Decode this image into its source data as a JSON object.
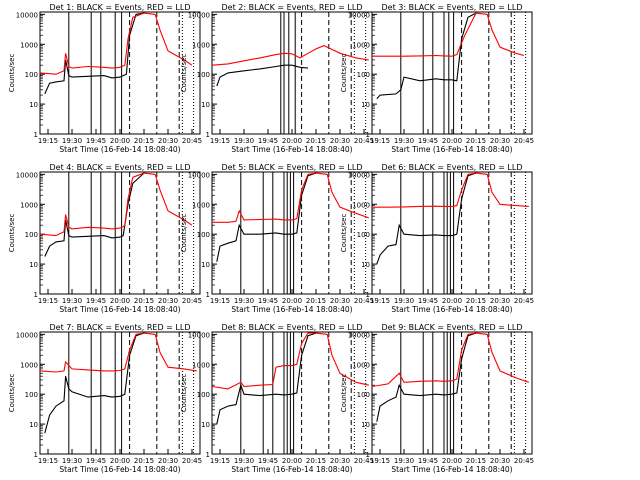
{
  "figure": {
    "start_time_label": "Start Time (16-Feb-14 18:08:40)",
    "ylabel": "Counts/sec",
    "x_tick_labels": [
      "19:15",
      "19:30",
      "19:45",
      "20:00",
      "20:15",
      "20:30",
      "20:45"
    ],
    "y_tick_labels": [
      "1",
      "10",
      "100",
      "1000",
      "10000"
    ]
  },
  "colors": {
    "events": "#000000",
    "lld": "#ff0000",
    "axes": "#000000"
  },
  "chart_data": [
    {
      "type": "line",
      "title": "Det 1: BLACK = Events, RED = LLD",
      "xlabel": "Start Time (16-Feb-14 18:08:40)",
      "ylabel": "Counts/sec",
      "xlim": [
        "19:10",
        "20:50"
      ],
      "ylim": [
        1,
        12000
      ],
      "yscale": "log",
      "series": [
        {
          "name": "Events",
          "color": "#000000",
          "x": [
            "19:13",
            "19:16",
            "19:20",
            "19:25",
            "19:26",
            "19:28",
            "19:30",
            "19:40",
            "19:50",
            "19:55",
            "20:00",
            "20:02",
            "20:04",
            "20:06",
            "20:10",
            "20:15"
          ],
          "values": [
            22,
            50,
            55,
            60,
            300,
            90,
            80,
            85,
            90,
            75,
            80,
            90,
            100,
            2000,
            10000,
            11000
          ]
        },
        {
          "name": "LLD",
          "color": "#ff0000",
          "x": [
            "19:10",
            "19:20",
            "19:25",
            "19:26",
            "19:28",
            "19:30",
            "19:40",
            "19:50",
            "19:55",
            "20:00",
            "20:03",
            "20:05",
            "20:08",
            "20:15",
            "20:22",
            "20:25",
            "20:30",
            "20:40",
            "20:45"
          ],
          "values": [
            110,
            100,
            130,
            500,
            180,
            160,
            180,
            170,
            160,
            170,
            200,
            1500,
            8000,
            11000,
            10000,
            3000,
            600,
            300,
            200
          ]
        }
      ],
      "vlines_solid": [
        "19:28",
        "19:42",
        "19:48",
        "19:57",
        "20:01"
      ],
      "vlines_dashed": [
        "20:06",
        "20:23",
        "20:37"
      ],
      "vlines_dotted": [
        "20:39",
        "20:46"
      ]
    },
    {
      "type": "line",
      "title": "Det 2: BLACK = Events, RED = LLD",
      "xlabel": "Start Time (16-Feb-14 18:08:40)",
      "ylabel": "Counts/sec",
      "xlim": [
        "19:10",
        "20:50"
      ],
      "ylim": [
        1,
        12000
      ],
      "yscale": "log",
      "series": [
        {
          "name": "Events",
          "color": "#000000",
          "x": [
            "19:13",
            "19:15",
            "19:20",
            "19:30",
            "19:40",
            "19:50",
            "19:55",
            "20:00",
            "20:05",
            "20:10"
          ],
          "values": [
            40,
            80,
            110,
            130,
            150,
            180,
            200,
            200,
            170,
            160
          ]
        },
        {
          "name": "LLD",
          "color": "#ff0000",
          "x": [
            "19:10",
            "19:20",
            "19:30",
            "19:40",
            "19:50",
            "19:55",
            "20:00",
            "20:05",
            "20:10",
            "20:15",
            "20:20",
            "20:30",
            "20:40",
            "20:48"
          ],
          "values": [
            200,
            220,
            280,
            350,
            450,
            500,
            480,
            350,
            500,
            700,
            900,
            500,
            350,
            300
          ]
        }
      ],
      "vlines_solid": [
        "19:53",
        "19:55",
        "19:58",
        "20:02"
      ],
      "vlines_dashed": [
        "20:06",
        "20:23",
        "20:37"
      ],
      "vlines_dotted": [
        "20:39",
        "20:46"
      ]
    },
    {
      "type": "line",
      "title": "Det 3: BLACK = Events, RED = LLD",
      "xlabel": "Start Time (16-Feb-14 18:08:40)",
      "ylabel": "Counts/sec",
      "xlim": [
        "19:10",
        "20:50"
      ],
      "ylim": [
        1,
        12000
      ],
      "yscale": "log",
      "series": [
        {
          "name": "Events",
          "color": "#000000",
          "x": [
            "19:13",
            "19:15",
            "19:25",
            "19:28",
            "19:30",
            "19:40",
            "19:50",
            "19:55",
            "20:00",
            "20:03",
            "20:06",
            "20:10",
            "20:15"
          ],
          "values": [
            15,
            20,
            22,
            30,
            80,
            60,
            70,
            65,
            65,
            60,
            1500,
            8000,
            11000
          ]
        },
        {
          "name": "LLD",
          "color": "#ff0000",
          "x": [
            "19:10",
            "19:20",
            "19:30",
            "19:40",
            "19:50",
            "19:55",
            "20:00",
            "20:03",
            "20:08",
            "20:15",
            "20:22",
            "20:25",
            "20:30",
            "20:40",
            "20:45"
          ],
          "values": [
            400,
            400,
            400,
            410,
            420,
            410,
            400,
            450,
            2000,
            11000,
            10000,
            3000,
            800,
            500,
            420
          ]
        }
      ],
      "vlines_solid": [
        "19:28",
        "19:42",
        "19:48",
        "19:55",
        "19:58",
        "20:01"
      ],
      "vlines_dashed": [
        "20:06",
        "20:23",
        "20:37"
      ],
      "vlines_dotted": [
        "20:39",
        "20:46"
      ]
    },
    {
      "type": "line",
      "title": "Det 4: BLACK = Events, RED = LLD",
      "xlabel": "Start Time (16-Feb-14 18:08:40)",
      "ylabel": "Counts/sec",
      "xlim": [
        "19:10",
        "20:50"
      ],
      "ylim": [
        1,
        12000
      ],
      "yscale": "log",
      "series": [
        {
          "name": "Events",
          "color": "#000000",
          "x": [
            "19:13",
            "19:16",
            "19:20",
            "19:25",
            "19:26",
            "19:28",
            "19:30",
            "19:40",
            "19:50",
            "19:55",
            "20:00",
            "20:02",
            "20:05",
            "20:08",
            "20:15"
          ],
          "values": [
            18,
            40,
            55,
            60,
            300,
            90,
            80,
            85,
            90,
            75,
            80,
            90,
            1000,
            5000,
            11000
          ]
        },
        {
          "name": "LLD",
          "color": "#ff0000",
          "x": [
            "19:10",
            "19:20",
            "19:25",
            "19:26",
            "19:28",
            "19:30",
            "19:40",
            "19:50",
            "19:55",
            "20:00",
            "20:03",
            "20:05",
            "20:08",
            "20:15",
            "20:22",
            "20:25",
            "20:30",
            "20:40",
            "20:45"
          ],
          "values": [
            100,
            90,
            120,
            450,
            170,
            150,
            170,
            160,
            150,
            160,
            190,
            1500,
            8000,
            11000,
            10000,
            3000,
            600,
            300,
            200
          ]
        }
      ],
      "vlines_solid": [
        "19:28",
        "19:42",
        "19:48",
        "19:57",
        "20:01"
      ],
      "vlines_dashed": [
        "20:06",
        "20:23",
        "20:37"
      ],
      "vlines_dotted": [
        "20:39",
        "20:46"
      ]
    },
    {
      "type": "line",
      "title": "Det 5: BLACK = Events, RED = LLD",
      "xlabel": "Start Time (16-Feb-14 18:08:40)",
      "ylabel": "Counts/sec",
      "xlim": [
        "19:10",
        "20:50"
      ],
      "ylim": [
        1,
        12000
      ],
      "yscale": "log",
      "series": [
        {
          "name": "Events",
          "color": "#000000",
          "x": [
            "19:13",
            "19:15",
            "19:20",
            "19:25",
            "19:27",
            "19:30",
            "19:40",
            "19:50",
            "19:55",
            "20:00",
            "20:03",
            "20:06",
            "20:10",
            "20:15"
          ],
          "values": [
            12,
            40,
            50,
            60,
            200,
            100,
            100,
            110,
            100,
            100,
            110,
            2000,
            9000,
            11000
          ]
        },
        {
          "name": "LLD",
          "color": "#ff0000",
          "x": [
            "19:10",
            "19:20",
            "19:25",
            "19:27",
            "19:30",
            "19:40",
            "19:50",
            "19:55",
            "20:00",
            "20:03",
            "20:06",
            "20:10",
            "20:15",
            "20:22",
            "20:25",
            "20:30",
            "20:40",
            "20:48"
          ],
          "values": [
            250,
            250,
            270,
            600,
            300,
            310,
            320,
            300,
            300,
            330,
            3000,
            10000,
            11000,
            10000,
            2500,
            800,
            500,
            350
          ]
        }
      ],
      "vlines_solid": [
        "19:28",
        "19:42",
        "19:48",
        "19:55",
        "19:57",
        "19:59",
        "20:01"
      ],
      "vlines_dashed": [
        "20:06",
        "20:23",
        "20:37"
      ],
      "vlines_dotted": [
        "20:39",
        "20:46"
      ]
    },
    {
      "type": "line",
      "title": "Det 6: BLACK = Events, RED = LLD",
      "xlabel": "Start Time (16-Feb-14 18:08:40)",
      "ylabel": "Counts/sec",
      "xlim": [
        "19:10",
        "20:50"
      ],
      "ylim": [
        1,
        12000
      ],
      "yscale": "log",
      "series": [
        {
          "name": "Events",
          "color": "#000000",
          "x": [
            "19:13",
            "19:15",
            "19:20",
            "19:25",
            "19:27",
            "19:30",
            "19:40",
            "19:50",
            "19:55",
            "20:00",
            "20:03",
            "20:06",
            "20:10",
            "20:15"
          ],
          "values": [
            10,
            20,
            40,
            45,
            200,
            100,
            90,
            95,
            90,
            90,
            100,
            1500,
            9000,
            11000
          ]
        },
        {
          "name": "LLD",
          "color": "#ff0000",
          "x": [
            "19:10",
            "19:20",
            "19:30",
            "19:40",
            "19:50",
            "19:55",
            "20:00",
            "20:03",
            "20:06",
            "20:10",
            "20:15",
            "20:22",
            "20:25",
            "20:30",
            "20:40",
            "20:48"
          ],
          "values": [
            800,
            800,
            820,
            850,
            860,
            850,
            840,
            900,
            3000,
            10000,
            11000,
            10000,
            2500,
            1000,
            900,
            850
          ]
        }
      ],
      "vlines_solid": [
        "19:28",
        "19:42",
        "19:48",
        "19:55",
        "19:57",
        "19:59",
        "20:01"
      ],
      "vlines_dashed": [
        "20:06",
        "20:23",
        "20:37"
      ],
      "vlines_dotted": [
        "20:39",
        "20:46"
      ]
    },
    {
      "type": "line",
      "title": "Det 7: BLACK = Events, RED = LLD",
      "xlabel": "Start Time (16-Feb-14 18:08:40)",
      "ylabel": "Counts/sec",
      "xlim": [
        "19:10",
        "20:50"
      ],
      "ylim": [
        1,
        12000
      ],
      "yscale": "log",
      "series": [
        {
          "name": "Events",
          "color": "#000000",
          "x": [
            "19:13",
            "19:16",
            "19:20",
            "19:25",
            "19:26",
            "19:28",
            "19:30",
            "19:40",
            "19:50",
            "19:55",
            "20:00",
            "20:03",
            "20:06",
            "20:10",
            "20:15"
          ],
          "values": [
            5,
            20,
            40,
            60,
            400,
            150,
            120,
            80,
            90,
            80,
            85,
            100,
            2000,
            9000,
            11000
          ]
        },
        {
          "name": "LLD",
          "color": "#ff0000",
          "x": [
            "19:10",
            "19:20",
            "19:25",
            "19:26",
            "19:30",
            "19:40",
            "19:50",
            "19:55",
            "20:00",
            "20:03",
            "20:06",
            "20:10",
            "20:15",
            "20:22",
            "20:25",
            "20:30",
            "20:40",
            "20:48"
          ],
          "values": [
            600,
            550,
            600,
            1200,
            700,
            650,
            600,
            600,
            620,
            700,
            3000,
            10000,
            11000,
            10000,
            2500,
            800,
            700,
            600
          ]
        }
      ],
      "vlines_solid": [
        "19:28",
        "19:42",
        "19:48",
        "19:57",
        "20:01"
      ],
      "vlines_dashed": [
        "20:06",
        "20:23",
        "20:37"
      ],
      "vlines_dotted": [
        "20:39",
        "20:46"
      ]
    },
    {
      "type": "line",
      "title": "Det 8: BLACK = Events, RED = LLD",
      "xlabel": "Start Time (16-Feb-14 18:08:40)",
      "ylabel": "Counts/sec",
      "xlim": [
        "19:10",
        "20:50"
      ],
      "ylim": [
        1,
        12000
      ],
      "yscale": "log",
      "series": [
        {
          "name": "Events",
          "color": "#000000",
          "x": [
            "19:13",
            "19:15",
            "19:20",
            "19:25",
            "19:28",
            "19:30",
            "19:40",
            "19:50",
            "19:55",
            "20:00",
            "20:03",
            "20:06",
            "20:10",
            "20:15"
          ],
          "values": [
            10,
            30,
            40,
            45,
            200,
            100,
            90,
            100,
            95,
            100,
            110,
            2000,
            9000,
            11000
          ]
        },
        {
          "name": "LLD",
          "color": "#ff0000",
          "x": [
            "19:10",
            "19:20",
            "19:28",
            "19:30",
            "19:40",
            "19:48",
            "19:50",
            "19:55",
            "20:00",
            "20:03",
            "20:06",
            "20:10",
            "20:15",
            "20:22",
            "20:25",
            "20:30",
            "20:40",
            "20:48"
          ],
          "values": [
            180,
            150,
            250,
            180,
            200,
            210,
            800,
            900,
            900,
            1000,
            5000,
            11000,
            11000,
            10000,
            2000,
            500,
            250,
            200
          ]
        }
      ],
      "vlines_solid": [
        "19:28",
        "19:42",
        "19:48",
        "19:55",
        "19:57",
        "19:59",
        "20:01"
      ],
      "vlines_dashed": [
        "20:06",
        "20:23",
        "20:37"
      ],
      "vlines_dotted": [
        "20:39",
        "20:46"
      ]
    },
    {
      "type": "line",
      "title": "Det 9: BLACK = Events, RED = LLD",
      "xlabel": "Start Time (16-Feb-14 18:08:40)",
      "ylabel": "Counts/sec",
      "xlim": [
        "19:10",
        "20:50"
      ],
      "ylim": [
        1,
        12000
      ],
      "yscale": "log",
      "series": [
        {
          "name": "Events",
          "color": "#000000",
          "x": [
            "19:13",
            "19:15",
            "19:20",
            "19:25",
            "19:27",
            "19:30",
            "19:40",
            "19:50",
            "19:55",
            "20:00",
            "20:03",
            "20:06",
            "20:10",
            "20:15"
          ],
          "values": [
            12,
            40,
            60,
            80,
            200,
            100,
            90,
            100,
            95,
            100,
            110,
            1500,
            9000,
            11000
          ]
        },
        {
          "name": "LLD",
          "color": "#ff0000",
          "x": [
            "19:10",
            "19:20",
            "19:27",
            "19:30",
            "19:40",
            "19:50",
            "19:55",
            "20:00",
            "20:03",
            "20:06",
            "20:10",
            "20:15",
            "20:22",
            "20:25",
            "20:30",
            "20:40",
            "20:48"
          ],
          "values": [
            180,
            220,
            500,
            250,
            270,
            280,
            270,
            280,
            320,
            3000,
            10000,
            11000,
            10000,
            2500,
            600,
            350,
            250
          ]
        }
      ],
      "vlines_solid": [
        "19:28",
        "19:42",
        "19:48",
        "19:55",
        "19:57",
        "19:59",
        "20:01"
      ],
      "vlines_dashed": [
        "20:06",
        "20:23",
        "20:37"
      ],
      "vlines_dotted": [
        "20:39",
        "20:46"
      ]
    }
  ]
}
